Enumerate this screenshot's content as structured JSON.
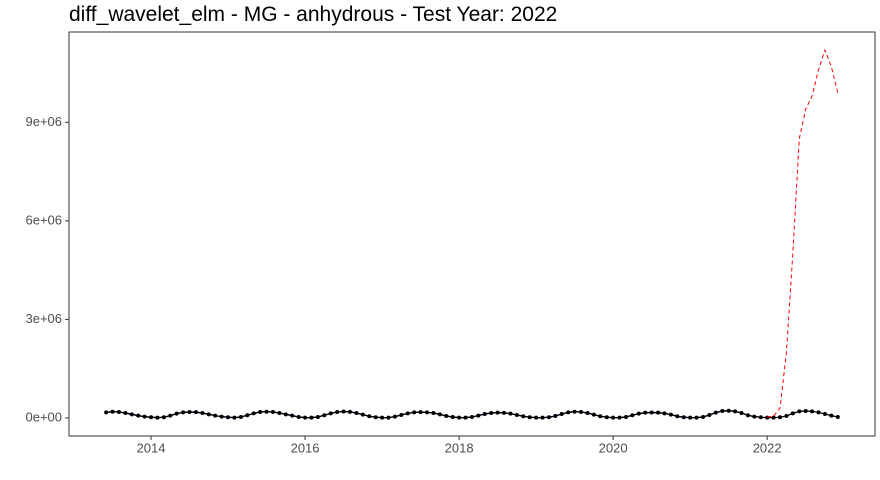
{
  "chart_data": {
    "type": "line",
    "title": "diff_wavelet_elm - MG - anhydrous - Test Year: 2022",
    "xlim": [
      2012.935,
      2023.4
    ],
    "xticks": [
      2014,
      2016,
      2018,
      2020,
      2022
    ],
    "ylim": [
      -550000,
      11750000
    ],
    "yticks": [
      {
        "value": 0,
        "label": "0e+00"
      },
      {
        "value": 3000000,
        "label": "3e+06"
      },
      {
        "value": 6000000,
        "label": "6e+06"
      },
      {
        "value": 9000000,
        "label": "9e+06"
      }
    ],
    "series": [
      {
        "color": "#0000ff",
        "linestyle": "solid",
        "markers": false,
        "x": [
          2013.417,
          2013.5,
          2013.583,
          2013.667,
          2013.75,
          2013.833,
          2013.917,
          2014,
          2014.083,
          2014.167,
          2014.25,
          2014.333,
          2014.417,
          2014.5,
          2014.583,
          2014.667,
          2014.75,
          2014.833,
          2014.917,
          2015,
          2015.083,
          2015.167,
          2015.25,
          2015.333,
          2015.417,
          2015.5,
          2015.583,
          2015.667,
          2015.75,
          2015.833,
          2015.917,
          2016,
          2016.083,
          2016.167,
          2016.25,
          2016.333,
          2016.417,
          2016.5,
          2016.583,
          2016.667,
          2016.75,
          2016.833,
          2016.917,
          2017,
          2017.083,
          2017.167,
          2017.25,
          2017.333,
          2017.417,
          2017.5,
          2017.583,
          2017.667,
          2017.75,
          2017.833,
          2017.917,
          2018,
          2018.083,
          2018.167,
          2018.25,
          2018.333,
          2018.417,
          2018.5,
          2018.583,
          2018.667,
          2018.75,
          2018.833,
          2018.917,
          2019,
          2019.083,
          2019.167,
          2019.25,
          2019.333,
          2019.417,
          2019.5,
          2019.583,
          2019.667,
          2019.75,
          2019.833,
          2019.917,
          2020,
          2020.083,
          2020.167,
          2020.25,
          2020.333,
          2020.417,
          2020.5,
          2020.583,
          2020.667,
          2020.75,
          2020.833,
          2020.917,
          2021,
          2021.083,
          2021.167,
          2021.25,
          2021.333,
          2021.417,
          2021.5,
          2021.583,
          2021.667,
          2021.75,
          2021.833,
          2021.917
        ],
        "values": [
          170000,
          190000,
          180000,
          150000,
          110000,
          70000,
          40000,
          20000,
          10000,
          20000,
          70000,
          130000,
          170000,
          180000,
          175000,
          150000,
          110000,
          70000,
          40000,
          20000,
          10000,
          30000,
          80000,
          140000,
          180000,
          190000,
          180000,
          150000,
          110000,
          70000,
          30000,
          10000,
          10000,
          30000,
          80000,
          140000,
          180000,
          195000,
          185000,
          150000,
          100000,
          50000,
          20000,
          10000,
          10000,
          40000,
          90000,
          140000,
          170000,
          175000,
          170000,
          150000,
          110000,
          60000,
          30000,
          10000,
          10000,
          30000,
          70000,
          120000,
          150000,
          160000,
          155000,
          130000,
          90000,
          50000,
          20000,
          10000,
          10000,
          20000,
          60000,
          120000,
          170000,
          190000,
          180000,
          150000,
          100000,
          50000,
          20000,
          10000,
          10000,
          30000,
          80000,
          130000,
          160000,
          165000,
          160000,
          140000,
          100000,
          50000,
          20000,
          10000,
          10000,
          30000,
          90000,
          160000,
          210000,
          220000,
          200000,
          150000,
          80000,
          40000,
          20000
        ]
      },
      {
        "color": "#000000",
        "linestyle": "solid",
        "markers": true,
        "x": [
          2013.417,
          2013.5,
          2013.583,
          2013.667,
          2013.75,
          2013.833,
          2013.917,
          2014,
          2014.083,
          2014.167,
          2014.25,
          2014.333,
          2014.417,
          2014.5,
          2014.583,
          2014.667,
          2014.75,
          2014.833,
          2014.917,
          2015,
          2015.083,
          2015.167,
          2015.25,
          2015.333,
          2015.417,
          2015.5,
          2015.583,
          2015.667,
          2015.75,
          2015.833,
          2015.917,
          2016,
          2016.083,
          2016.167,
          2016.25,
          2016.333,
          2016.417,
          2016.5,
          2016.583,
          2016.667,
          2016.75,
          2016.833,
          2016.917,
          2017,
          2017.083,
          2017.167,
          2017.25,
          2017.333,
          2017.417,
          2017.5,
          2017.583,
          2017.667,
          2017.75,
          2017.833,
          2017.917,
          2018,
          2018.083,
          2018.167,
          2018.25,
          2018.333,
          2018.417,
          2018.5,
          2018.583,
          2018.667,
          2018.75,
          2018.833,
          2018.917,
          2019,
          2019.083,
          2019.167,
          2019.25,
          2019.333,
          2019.417,
          2019.5,
          2019.583,
          2019.667,
          2019.75,
          2019.833,
          2019.917,
          2020,
          2020.083,
          2020.167,
          2020.25,
          2020.333,
          2020.417,
          2020.5,
          2020.583,
          2020.667,
          2020.75,
          2020.833,
          2020.917,
          2021,
          2021.083,
          2021.167,
          2021.25,
          2021.333,
          2021.417,
          2021.5,
          2021.583,
          2021.667,
          2021.75,
          2021.833,
          2021.917,
          2022,
          2022.083,
          2022.167,
          2022.25,
          2022.333,
          2022.417,
          2022.5,
          2022.583,
          2022.667,
          2022.75,
          2022.833,
          2022.917
        ],
        "values": [
          170000,
          190000,
          180000,
          150000,
          110000,
          70000,
          40000,
          20000,
          10000,
          20000,
          70000,
          130000,
          170000,
          180000,
          175000,
          150000,
          110000,
          70000,
          40000,
          20000,
          10000,
          30000,
          80000,
          140000,
          180000,
          190000,
          180000,
          150000,
          110000,
          70000,
          30000,
          10000,
          10000,
          30000,
          80000,
          140000,
          180000,
          195000,
          185000,
          150000,
          100000,
          50000,
          20000,
          10000,
          10000,
          40000,
          90000,
          140000,
          170000,
          175000,
          170000,
          150000,
          110000,
          60000,
          30000,
          10000,
          10000,
          30000,
          70000,
          120000,
          150000,
          160000,
          155000,
          130000,
          90000,
          50000,
          20000,
          10000,
          10000,
          20000,
          60000,
          120000,
          170000,
          190000,
          180000,
          150000,
          100000,
          50000,
          20000,
          10000,
          10000,
          30000,
          80000,
          130000,
          160000,
          165000,
          160000,
          140000,
          100000,
          50000,
          20000,
          10000,
          10000,
          30000,
          90000,
          160000,
          210000,
          220000,
          200000,
          150000,
          80000,
          40000,
          20000,
          10000,
          10000,
          20000,
          60000,
          140000,
          200000,
          210000,
          200000,
          170000,
          120000,
          70000,
          30000
        ]
      },
      {
        "color": "#ff0000",
        "linestyle": "dashed",
        "markers": false,
        "x": [
          2022,
          2022.083,
          2022.167,
          2022.25,
          2022.333,
          2022.417,
          2022.5,
          2022.583,
          2022.667,
          2022.75,
          2022.833,
          2022.917
        ],
        "values": [
          30000,
          50000,
          300000,
          2000000,
          5000000,
          8500000,
          9400000,
          9800000,
          10600000,
          11200000,
          10700000,
          9900000
        ]
      }
    ]
  }
}
